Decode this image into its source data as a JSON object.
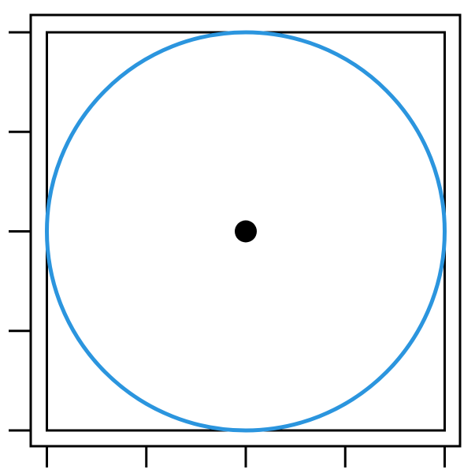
{
  "figure": {
    "circle_color": "#2b95de",
    "frame_color": "#000000",
    "center_point_color": "#000000",
    "background_color": "#ffffff"
  },
  "chart_data": {
    "type": "scatter",
    "title": "",
    "xlabel": "",
    "ylabel": "",
    "xlim": [
      -1,
      1
    ],
    "ylim": [
      -1,
      1
    ],
    "grid": false,
    "x_ticks": [
      -1,
      -0.5,
      0,
      0.5,
      1
    ],
    "y_ticks": [
      -1,
      -0.5,
      0,
      0.5,
      1
    ],
    "tick_labels_shown": false,
    "series": [
      {
        "name": "center",
        "x": [
          0
        ],
        "y": [
          0
        ]
      }
    ],
    "shapes": [
      {
        "kind": "circle",
        "center": [
          0,
          0
        ],
        "radius": 1
      },
      {
        "kind": "rectangle",
        "x_range": [
          -1,
          1
        ],
        "y_range": [
          -1,
          1
        ]
      }
    ]
  }
}
